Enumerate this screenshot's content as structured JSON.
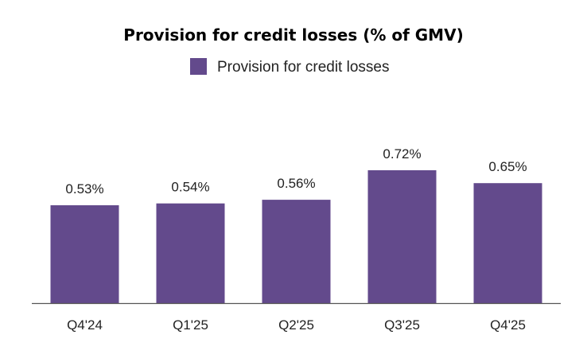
{
  "chart_data": {
    "type": "bar",
    "title": "Provision for credit losses (% of GMV)",
    "xlabel": "",
    "ylabel": "",
    "legend": {
      "position": "top-center",
      "entries": [
        "Provision for credit losses"
      ]
    },
    "grid": false,
    "categories": [
      "Q4'24",
      "Q1'25",
      "Q2'25",
      "Q3'25",
      "Q4'25"
    ],
    "series": [
      {
        "name": "Provision for credit losses",
        "values": [
          0.53,
          0.54,
          0.56,
          0.72,
          0.65
        ],
        "labels": [
          "0.53%",
          "0.54%",
          "0.56%",
          "0.72%",
          "0.65%"
        ],
        "color": "#634A8C"
      }
    ],
    "ylim": [
      0,
      0.8
    ]
  },
  "colors": {
    "bar": "#634A8C",
    "axis": "#555555",
    "text": "#222222"
  }
}
